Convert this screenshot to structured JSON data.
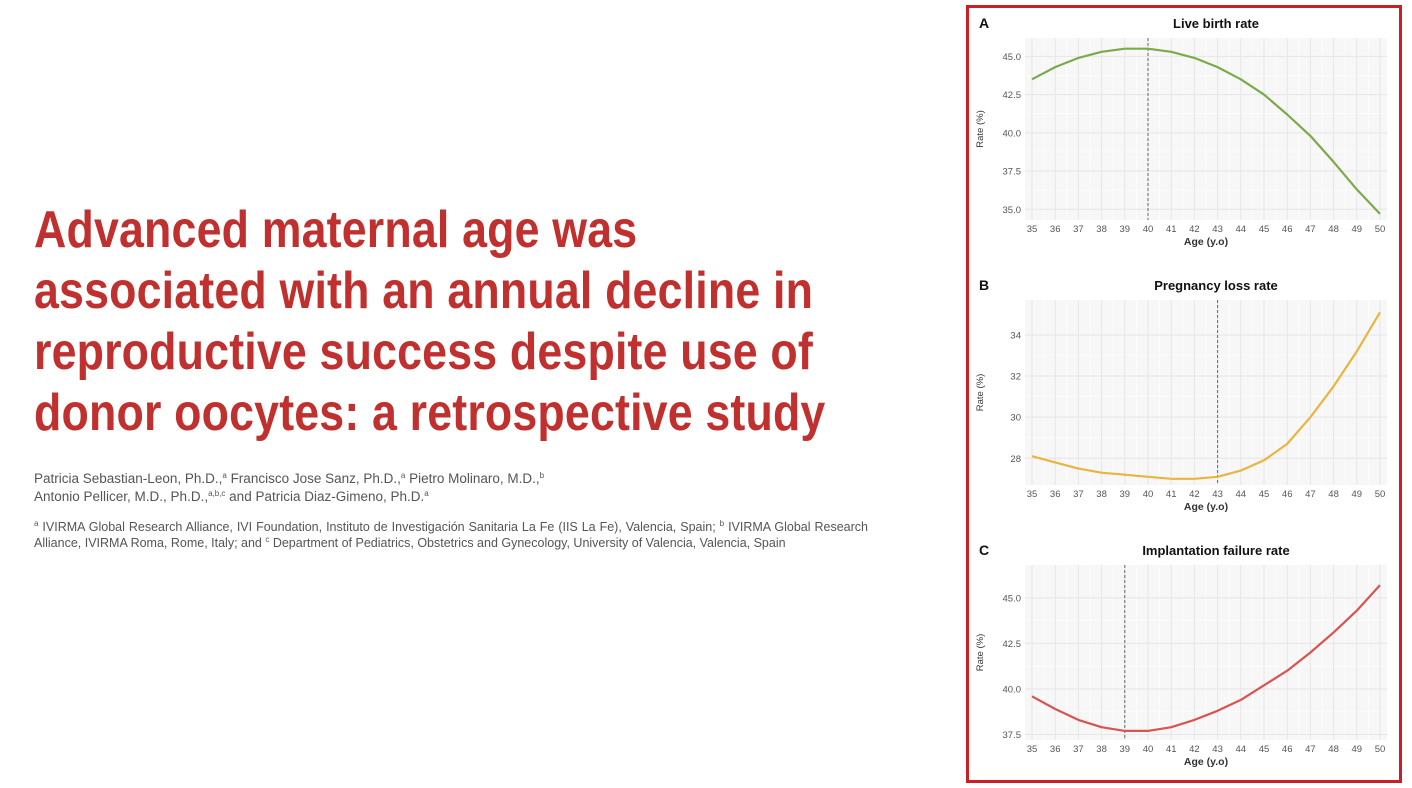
{
  "paper": {
    "title_lines": [
      "Advanced maternal age was",
      "associated with an annual decline in",
      "reproductive success despite use of",
      "donor oocytes: a retrospective study"
    ],
    "authors": {
      "line1": [
        {
          "name": "Patricia Sebastian-Leon, Ph.D.,",
          "sup": "a"
        },
        {
          "name": " Francisco Jose Sanz, Ph.D.,",
          "sup": "a"
        },
        {
          "name": " Pietro Molinaro, M.D.,",
          "sup": "b"
        }
      ],
      "line2": [
        {
          "name": "Antonio Pellicer, M.D., Ph.D.,",
          "sup": "a,b,c"
        },
        {
          "name": " and Patricia Diaz-Gimeno, Ph.D.",
          "sup": "a"
        }
      ]
    },
    "affiliations": [
      {
        "sup": "a",
        "text": " IVIRMA Global Research Alliance, IVI Foundation, Instituto de Investigación Sanitaria La Fe (IIS La Fe), Valencia, Spain; "
      },
      {
        "sup": "b",
        "text": " IVIRMA Global Research Alliance, IVIRMA Roma, Rome, Italy; and "
      },
      {
        "sup": "c",
        "text": " Department of Pediatrics, Obstetrics and Gynecology, University of Valencia, Valencia, Spain"
      }
    ]
  },
  "chart_data": [
    {
      "type": "line",
      "panel": "A",
      "title": "Live birth rate",
      "xlabel": "Age (y.o)",
      "ylabel": "Rate (%)",
      "color": "#7aab4a",
      "xticks": [
        35,
        36,
        37,
        38,
        39,
        40,
        41,
        42,
        43,
        44,
        45,
        46,
        47,
        48,
        49,
        50
      ],
      "yticks": [
        35.0,
        37.5,
        40.0,
        42.5,
        45.0
      ],
      "ylim": [
        34.3,
        46.2
      ],
      "marker_age": 40,
      "x": [
        35,
        36,
        37,
        38,
        39,
        40,
        41,
        42,
        43,
        44,
        45,
        46,
        47,
        48,
        49,
        50
      ],
      "y": [
        43.5,
        44.3,
        44.9,
        45.3,
        45.5,
        45.5,
        45.3,
        44.9,
        44.3,
        43.5,
        42.5,
        41.2,
        39.8,
        38.1,
        36.3,
        34.7
      ]
    },
    {
      "type": "line",
      "panel": "B",
      "title": "Pregnancy loss rate",
      "xlabel": "Age (y.o)",
      "ylabel": "Rate (%)",
      "color": "#e8b541",
      "xticks": [
        35,
        36,
        37,
        38,
        39,
        40,
        41,
        42,
        43,
        44,
        45,
        46,
        47,
        48,
        49,
        50
      ],
      "yticks": [
        28,
        30,
        32,
        34
      ],
      "ylim": [
        26.7,
        35.7
      ],
      "marker_age": 43,
      "x": [
        35,
        36,
        37,
        38,
        39,
        40,
        41,
        42,
        43,
        44,
        45,
        46,
        47,
        48,
        49,
        50
      ],
      "y": [
        28.1,
        27.8,
        27.5,
        27.3,
        27.2,
        27.1,
        27.0,
        27.0,
        27.1,
        27.4,
        27.9,
        28.7,
        30.0,
        31.5,
        33.2,
        35.1
      ]
    },
    {
      "type": "line",
      "panel": "C",
      "title": "Implantation failure rate",
      "xlabel": "Age (y.o)",
      "ylabel": "Rate (%)",
      "color": "#d9534f",
      "xticks": [
        35,
        36,
        37,
        38,
        39,
        40,
        41,
        42,
        43,
        44,
        45,
        46,
        47,
        48,
        49,
        50
      ],
      "yticks": [
        37.5,
        40.0,
        42.5,
        45.0
      ],
      "ylim": [
        37.2,
        46.8
      ],
      "marker_age": 39,
      "x": [
        35,
        36,
        37,
        38,
        39,
        40,
        41,
        42,
        43,
        44,
        45,
        46,
        47,
        48,
        49,
        50
      ],
      "y": [
        39.6,
        38.9,
        38.3,
        37.9,
        37.7,
        37.7,
        37.9,
        38.3,
        38.8,
        39.4,
        40.2,
        41.0,
        42.0,
        43.1,
        44.3,
        45.7
      ]
    }
  ]
}
